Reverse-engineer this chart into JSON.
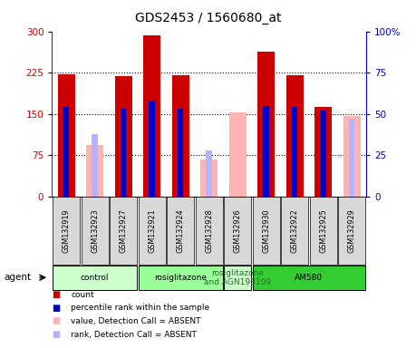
{
  "title": "GDS2453 / 1560680_at",
  "samples": [
    "GSM132919",
    "GSM132923",
    "GSM132927",
    "GSM132921",
    "GSM132924",
    "GSM132928",
    "GSM132926",
    "GSM132930",
    "GSM132922",
    "GSM132925",
    "GSM132929"
  ],
  "count_values": [
    222,
    null,
    218,
    292,
    221,
    null,
    null,
    263,
    221,
    162,
    null
  ],
  "count_absent_values": [
    null,
    93,
    null,
    null,
    null,
    68,
    153,
    null,
    null,
    null,
    147
  ],
  "rank_values": [
    54,
    null,
    53,
    58,
    53,
    null,
    null,
    55,
    54,
    52,
    null
  ],
  "rank_absent_values": [
    null,
    38,
    null,
    null,
    null,
    28,
    null,
    null,
    null,
    null,
    47
  ],
  "ylim_left": [
    0,
    300
  ],
  "ylim_right": [
    0,
    100
  ],
  "yticks_left": [
    0,
    75,
    150,
    225,
    300
  ],
  "yticks_right": [
    0,
    25,
    50,
    75,
    100
  ],
  "count_color": "#cc0000",
  "count_absent_color": "#ffb3b3",
  "rank_color": "#0000cc",
  "rank_absent_color": "#b3b3ff",
  "group_defs": [
    {
      "start": 0,
      "end": 2,
      "label": "control",
      "color": "#ccffcc",
      "text_color": "#000000"
    },
    {
      "start": 3,
      "end": 5,
      "label": "rosiglitazone",
      "color": "#99ff99",
      "text_color": "#000000"
    },
    {
      "start": 6,
      "end": 6,
      "label": "rosiglitazone\nand AGN193109",
      "color": "#ccffcc",
      "text_color": "#336633"
    },
    {
      "start": 7,
      "end": 10,
      "label": "AM580",
      "color": "#33cc33",
      "text_color": "#000000"
    }
  ],
  "legend_items": [
    {
      "color": "#cc0000",
      "label": "count"
    },
    {
      "color": "#0000cc",
      "label": "percentile rank within the sample"
    },
    {
      "color": "#ffb3b3",
      "label": "value, Detection Call = ABSENT"
    },
    {
      "color": "#b3b3ff",
      "label": "rank, Detection Call = ABSENT"
    }
  ],
  "background_color": "#ffffff",
  "left_axis_color": "#cc0000",
  "right_axis_color": "#0000cc",
  "bar_width": 0.6,
  "rank_marker_size": 5
}
